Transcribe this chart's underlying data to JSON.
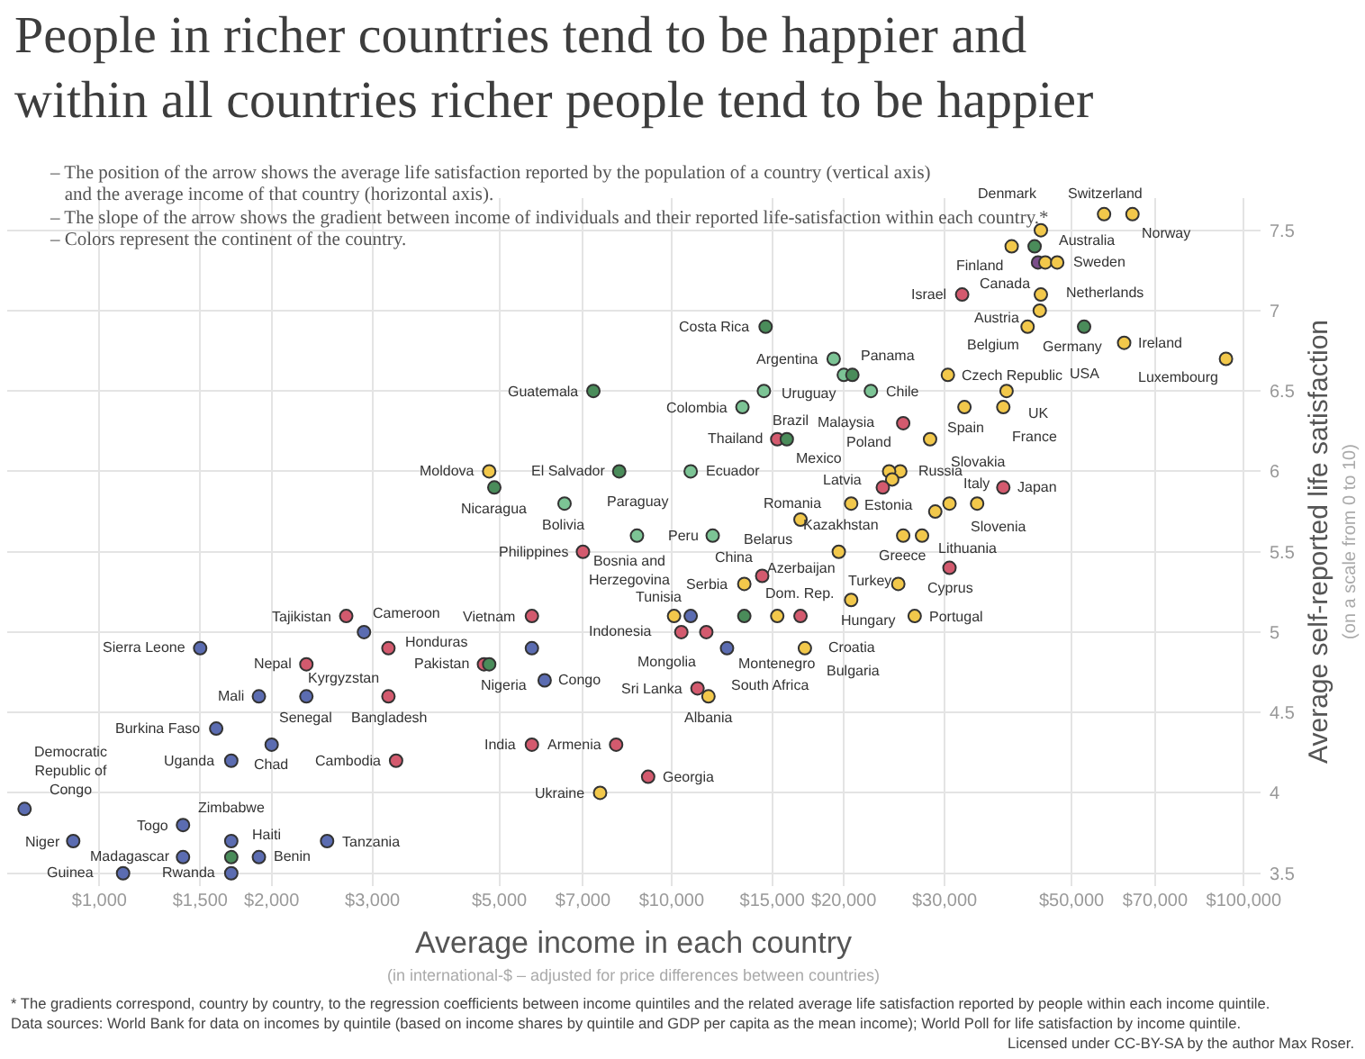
{
  "chart_data": {
    "type": "scatter",
    "title": "People in richer countries tend to be happier and\nwithin all countries richer people tend to be happier",
    "subtitle": "– The position of the arrow shows the average life satisfaction reported by the population of a country (vertical axis)\n   and the average income of that country (horizontal axis).\n– The slope of the arrow shows the gradient between income of individuals and their reported life-satisfaction within each country.*\n– Colors represent the continent of the country.",
    "xlabel": "Average income in each country\n(in international-$ – adjusted for price differences between countries)",
    "ylabel": "Average self-reported life satisfaction\n(on a scale from 0 to 10)",
    "log": "x",
    "grid": true,
    "marker": "circle",
    "xlim": [
      690,
      107000
    ],
    "ylim": [
      3.42,
      7.7
    ],
    "xticks": [
      {
        "value": 1000,
        "label": "$1,000"
      },
      {
        "value": 1500,
        "label": "$1,500"
      },
      {
        "value": 2000,
        "label": "$2,000"
      },
      {
        "value": 3000,
        "label": "$3,000"
      },
      {
        "value": 5000,
        "label": "$5,000"
      },
      {
        "value": 7000,
        "label": "$7,000"
      },
      {
        "value": 10000,
        "label": "$10,000"
      },
      {
        "value": 15000,
        "label": "$15,000"
      },
      {
        "value": 20000,
        "label": "$20,000"
      },
      {
        "value": 30000,
        "label": "$30,000"
      },
      {
        "value": 50000,
        "label": "$50,000"
      },
      {
        "value": 70000,
        "label": "$70,000"
      },
      {
        "value": 100000,
        "label": "$100,000"
      }
    ],
    "yticks": [
      3.5,
      4,
      4.5,
      5,
      5.5,
      6,
      6.5,
      7,
      7.5
    ],
    "x": [
      57000,
      63900,
      44200,
      39300,
      43100,
      43700,
      45000,
      47200,
      32200,
      44200,
      44000,
      41900,
      52600,
      61800,
      93100,
      14600,
      19200,
      20000,
      20700,
      14500,
      22300,
      13300,
      30400,
      38500,
      38000,
      32500,
      25400,
      28300,
      15300,
      15900,
      25100,
      24000,
      24300,
      20600,
      23400,
      38000,
      34200,
      30600,
      28900,
      10800,
      11800,
      16800,
      19600,
      25400,
      27400,
      24900,
      30600,
      20600,
      26600,
      17100,
      13400,
      14400,
      10800,
      13400,
      15300,
      16800,
      11500,
      10400,
      12500,
      11100,
      11600,
      10100,
      9100,
      8000,
      7500,
      5700,
      5700,
      7000,
      8700,
      5700,
      4700,
      4800,
      6000,
      2900,
      2700,
      2300,
      3200,
      3200,
      3300,
      1500,
      1900,
      2300,
      1600,
      2000,
      1700,
      740,
      900,
      1400,
      1700,
      1400,
      1700,
      1900,
      2500,
      1100,
      1700,
      7300,
      4800,
      4900,
      8100,
      6500
    ],
    "values": [
      7.6,
      7.6,
      7.5,
      7.4,
      7.4,
      7.3,
      7.3,
      7.3,
      7.1,
      7.1,
      7.0,
      6.9,
      6.9,
      6.8,
      6.7,
      6.9,
      6.7,
      6.6,
      6.6,
      6.5,
      6.5,
      6.4,
      6.6,
      6.5,
      6.4,
      6.4,
      6.3,
      6.2,
      6.2,
      6.2,
      6.0,
      6.0,
      5.95,
      5.8,
      5.9,
      5.9,
      5.8,
      5.8,
      5.75,
      6.0,
      5.6,
      5.7,
      5.5,
      5.6,
      5.6,
      5.3,
      5.4,
      5.2,
      5.1,
      4.9,
      5.3,
      5.35,
      5.1,
      5.1,
      5.1,
      5.1,
      5.0,
      5.0,
      4.9,
      4.65,
      4.6,
      5.1,
      4.1,
      4.3,
      4.0,
      4.3,
      5.1,
      5.5,
      5.6,
      4.9,
      4.8,
      4.8,
      4.7,
      5.0,
      5.1,
      4.8,
      4.9,
      4.6,
      4.2,
      4.9,
      4.6,
      4.6,
      4.4,
      4.3,
      4.2,
      3.9,
      3.7,
      3.8,
      3.7,
      3.6,
      3.6,
      3.6,
      3.7,
      3.5,
      3.5,
      6.5,
      6.0,
      5.9,
      6.0,
      5.8
    ],
    "colors": [
      "#f2c84b",
      "#f2c84b",
      "#f2c84b",
      "#f2c84b",
      "#4a8c5a",
      "#7b4e8a",
      "#f2c84b",
      "#f2c84b",
      "#d35a6e",
      "#f2c84b",
      "#f2c84b",
      "#f2c84b",
      "#4a8c5a",
      "#f2c84b",
      "#f2c84b",
      "#4a8c5a",
      "#7cc495",
      "#7cc495",
      "#4a8c5a",
      "#7cc495",
      "#7cc495",
      "#7cc495",
      "#f2c84b",
      "#f2c84b",
      "#f2c84b",
      "#f2c84b",
      "#d35a6e",
      "#f2c84b",
      "#d35a6e",
      "#4a8c5a",
      "#f2c84b",
      "#f2c84b",
      "#f2c84b",
      "#f2c84b",
      "#d35a6e",
      "#d35a6e",
      "#f2c84b",
      "#f2c84b",
      "#f2c84b",
      "#7cc495",
      "#7cc495",
      "#f2c84b",
      "#f2c84b",
      "#f2c84b",
      "#f2c84b",
      "#f2c84b",
      "#d35a6e",
      "#f2c84b",
      "#f2c84b",
      "#f2c84b",
      "#f2c84b",
      "#d35a6e",
      "#5b6cb1",
      "#4a8c5a",
      "#f2c84b",
      "#d35a6e",
      "#d35a6e",
      "#d35a6e",
      "#5b6cb1",
      "#d35a6e",
      "#f2c84b",
      "#f2c84b",
      "#d35a6e",
      "#d35a6e",
      "#f2c84b",
      "#d35a6e",
      "#d35a6e",
      "#d35a6e",
      "#7cc495",
      "#5b6cb1",
      "#d35a6e",
      "#4a8c5a",
      "#5b6cb1",
      "#5b6cb1",
      "#d35a6e",
      "#d35a6e",
      "#d35a6e",
      "#d35a6e",
      "#d35a6e",
      "#5b6cb1",
      "#5b6cb1",
      "#5b6cb1",
      "#5b6cb1",
      "#5b6cb1",
      "#5b6cb1",
      "#5b6cb1",
      "#5b6cb1",
      "#5b6cb1",
      "#5b6cb1",
      "#5b6cb1",
      "#4a8c5a",
      "#5b6cb1",
      "#5b6cb1",
      "#5b6cb1",
      "#5b6cb1",
      "#4a8c5a",
      "#f2c84b",
      "#4a8c5a",
      "#4a8c5a",
      "#7cc495"
    ],
    "annotations": [
      {
        "text": "Switzerland",
        "x": 57000,
        "y": 7.6
      },
      {
        "text": "Norway",
        "x": 63900,
        "y": 7.6
      },
      {
        "text": "Denmark",
        "x": 44200,
        "y": 7.5
      },
      {
        "text": "Finland",
        "x": 39300,
        "y": 7.4
      },
      {
        "text": "Canada",
        "x": 43100,
        "y": 7.4
      },
      {
        "text": "Australia",
        "x": 43700,
        "y": 7.3
      },
      {
        "text": "Sweden",
        "x": 45000,
        "y": 7.3
      },
      {
        "text": "Netherlands",
        "x": 47200,
        "y": 7.3
      },
      {
        "text": "Israel",
        "x": 32200,
        "y": 7.1
      },
      {
        "text": "Austria",
        "x": 44200,
        "y": 7.1
      },
      {
        "text": "Germany",
        "x": 44000,
        "y": 7.0
      },
      {
        "text": "Belgium",
        "x": 41900,
        "y": 6.9
      },
      {
        "text": "USA",
        "x": 52600,
        "y": 6.9
      },
      {
        "text": "Ireland",
        "x": 61800,
        "y": 6.8
      },
      {
        "text": "Luxembourg",
        "x": 93100,
        "y": 6.7
      },
      {
        "text": "Costa Rica",
        "x": 14600,
        "y": 6.9
      },
      {
        "text": "Argentina",
        "x": 19200,
        "y": 6.7
      },
      {
        "text": "Uruguay",
        "x": 20000,
        "y": 6.6
      },
      {
        "text": "Panama",
        "x": 20700,
        "y": 6.6
      },
      {
        "text": "Brazil",
        "x": 14500,
        "y": 6.5
      },
      {
        "text": "Chile",
        "x": 22300,
        "y": 6.5
      },
      {
        "text": "Colombia",
        "x": 13300,
        "y": 6.4
      },
      {
        "text": "Czech Republic",
        "x": 30400,
        "y": 6.6
      },
      {
        "text": "UK",
        "x": 38500,
        "y": 6.5
      },
      {
        "text": "France",
        "x": 38000,
        "y": 6.4
      },
      {
        "text": "Spain",
        "x": 32500,
        "y": 6.4
      },
      {
        "text": "Malaysia",
        "x": 25400,
        "y": 6.3
      },
      {
        "text": "Slovakia",
        "x": 28300,
        "y": 6.2
      },
      {
        "text": "Thailand",
        "x": 15300,
        "y": 6.2
      },
      {
        "text": "Mexico",
        "x": 15900,
        "y": 6.2
      },
      {
        "text": "Poland",
        "x": 25100,
        "y": 6.0
      },
      {
        "text": "Russia",
        "x": 24000,
        "y": 6.0
      },
      {
        "text": "Latvia",
        "x": 24300,
        "y": 5.95
      },
      {
        "text": "Romania",
        "x": 20600,
        "y": 5.8
      },
      {
        "text": "Kazakhstan",
        "x": 23400,
        "y": 5.9
      },
      {
        "text": "Japan",
        "x": 38000,
        "y": 5.9
      },
      {
        "text": "Italy",
        "x": 34200,
        "y": 5.8
      },
      {
        "text": "Slovenia",
        "x": 30600,
        "y": 5.8
      },
      {
        "text": "Lithuania",
        "x": 28900,
        "y": 5.75
      },
      {
        "text": "Ecuador",
        "x": 10800,
        "y": 6.0
      },
      {
        "text": "Peru",
        "x": 11800,
        "y": 5.6
      },
      {
        "text": "Belarus",
        "x": 16800,
        "y": 5.7
      },
      {
        "text": "Turkey",
        "x": 19600,
        "y": 5.5
      },
      {
        "text": "Greece",
        "x": 25400,
        "y": 5.6
      },
      {
        "text": "Estonia",
        "x": 27400,
        "y": 5.6
      },
      {
        "text": "Hungary",
        "x": 24900,
        "y": 5.3
      },
      {
        "text": "Cyprus",
        "x": 30600,
        "y": 5.4
      },
      {
        "text": "Croatia",
        "x": 20600,
        "y": 5.2
      },
      {
        "text": "Portugal",
        "x": 26600,
        "y": 5.1
      },
      {
        "text": "Bulgaria",
        "x": 17100,
        "y": 4.9
      },
      {
        "text": "Serbia",
        "x": 13400,
        "y": 5.3
      },
      {
        "text": "China",
        "x": 14400,
        "y": 5.35
      },
      {
        "text": "Tunisia",
        "x": 10800,
        "y": 5.1
      },
      {
        "text": "Dom. Rep.",
        "x": 13400,
        "y": 5.1
      },
      {
        "text": "Montenegro",
        "x": 15300,
        "y": 5.1
      },
      {
        "text": "Azerbaijan",
        "x": 16800,
        "y": 5.1
      },
      {
        "text": "Mongolia",
        "x": 11500,
        "y": 5.0
      },
      {
        "text": "Indonesia",
        "x": 10400,
        "y": 5.0
      },
      {
        "text": "South Africa",
        "x": 12500,
        "y": 4.9
      },
      {
        "text": "Sri Lanka",
        "x": 11100,
        "y": 4.65
      },
      {
        "text": "Albania",
        "x": 11600,
        "y": 4.6
      },
      {
        "text": "Bosnia and\nHerzegovina",
        "x": 10100,
        "y": 5.1
      },
      {
        "text": "Georgia",
        "x": 9100,
        "y": 4.1
      },
      {
        "text": "Armenia",
        "x": 8000,
        "y": 4.3
      },
      {
        "text": "Ukraine",
        "x": 7500,
        "y": 4.0
      },
      {
        "text": "India",
        "x": 5700,
        "y": 4.3
      },
      {
        "text": "Vietnam",
        "x": 5700,
        "y": 5.1
      },
      {
        "text": "Philippines",
        "x": 7000,
        "y": 5.5
      },
      {
        "text": "Paraguay",
        "x": 8700,
        "y": 5.6
      },
      {
        "text": "Nigeria",
        "x": 5700,
        "y": 4.9
      },
      {
        "text": "Pakistan",
        "x": 4700,
        "y": 4.8
      },
      {
        "text": "Honduras",
        "x": 4800,
        "y": 4.8
      },
      {
        "text": "Congo",
        "x": 6000,
        "y": 4.7
      },
      {
        "text": "Cameroon",
        "x": 2900,
        "y": 5.0
      },
      {
        "text": "Tajikistan",
        "x": 2700,
        "y": 5.1
      },
      {
        "text": "Nepal",
        "x": 2300,
        "y": 4.8
      },
      {
        "text": "Kyrgyzstan",
        "x": 3200,
        "y": 4.9
      },
      {
        "text": "Bangladesh",
        "x": 3200,
        "y": 4.6
      },
      {
        "text": "Cambodia",
        "x": 3300,
        "y": 4.2
      },
      {
        "text": "Sierra Leone",
        "x": 1500,
        "y": 4.9
      },
      {
        "text": "Mali",
        "x": 1900,
        "y": 4.6
      },
      {
        "text": "Senegal",
        "x": 2300,
        "y": 4.6
      },
      {
        "text": "Burkina Faso",
        "x": 1600,
        "y": 4.4
      },
      {
        "text": "Chad",
        "x": 2000,
        "y": 4.3
      },
      {
        "text": "Uganda",
        "x": 1700,
        "y": 4.2
      },
      {
        "text": "Democratic\nRepublic of\nCongo",
        "x": 740,
        "y": 3.9
      },
      {
        "text": "Niger",
        "x": 900,
        "y": 3.7
      },
      {
        "text": "Togo",
        "x": 1400,
        "y": 3.8
      },
      {
        "text": "Zimbabwe",
        "x": 1700,
        "y": 3.7
      },
      {
        "text": "Madagascar",
        "x": 1400,
        "y": 3.6
      },
      {
        "text": "Haiti",
        "x": 1700,
        "y": 3.6
      },
      {
        "text": "Benin",
        "x": 1900,
        "y": 3.6
      },
      {
        "text": "Tanzania",
        "x": 2500,
        "y": 3.7
      },
      {
        "text": "Guinea",
        "x": 1100,
        "y": 3.5
      },
      {
        "text": "Rwanda",
        "x": 1700,
        "y": 3.5
      },
      {
        "text": "Guatemala",
        "x": 7300,
        "y": 6.5
      },
      {
        "text": "Moldova",
        "x": 4800,
        "y": 6.0
      },
      {
        "text": "Nicaragua",
        "x": 4900,
        "y": 5.9
      },
      {
        "text": "El Salvador",
        "x": 8100,
        "y": 6.0
      },
      {
        "text": "Bolivia",
        "x": 6500,
        "y": 5.8
      },
      "* The gradients correspond, country by country, to the regression coefficients between income quintiles and the related average life satisfaction reported by people within each income quintile.",
      "Data sources: World Bank for data on incomes by quintile (based on income shares by quintile and GDP per capita as the mean income); World Poll for life satisfaction by income quintile.",
      "Licensed under CC-BY-SA by the author Max Roser."
    ]
  }
}
